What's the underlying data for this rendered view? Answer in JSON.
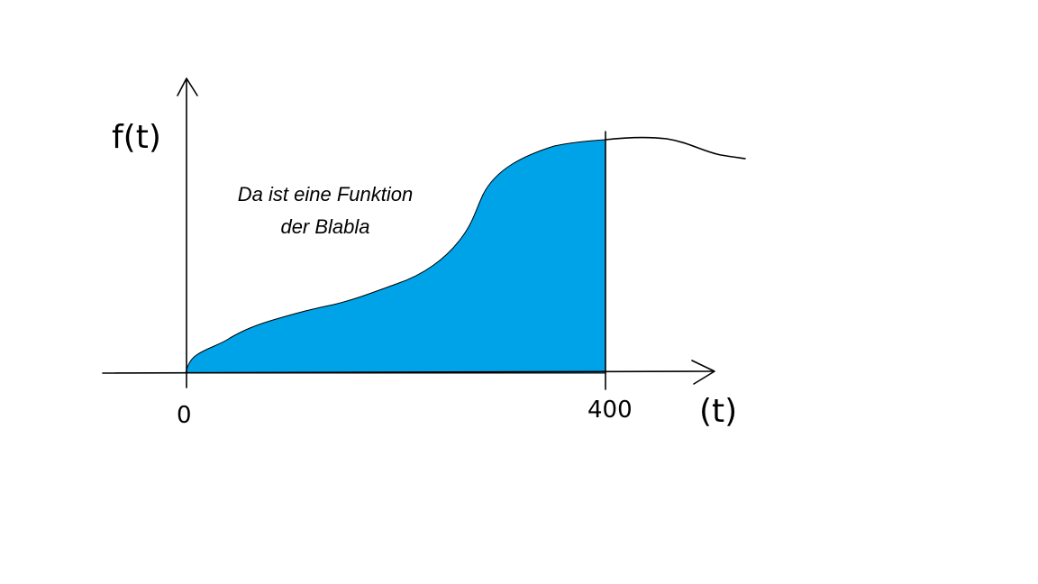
{
  "diagram": {
    "y_axis_label": "f(t)",
    "x_axis_label": "(t)",
    "x_ticks": {
      "origin": "0",
      "end": "400"
    },
    "annotation": {
      "line1": "Da ist eine Funktion",
      "line2": "der Blabla"
    },
    "colors": {
      "fill": "#00a2e8",
      "stroke": "#000000",
      "background": "#ffffff"
    }
  }
}
